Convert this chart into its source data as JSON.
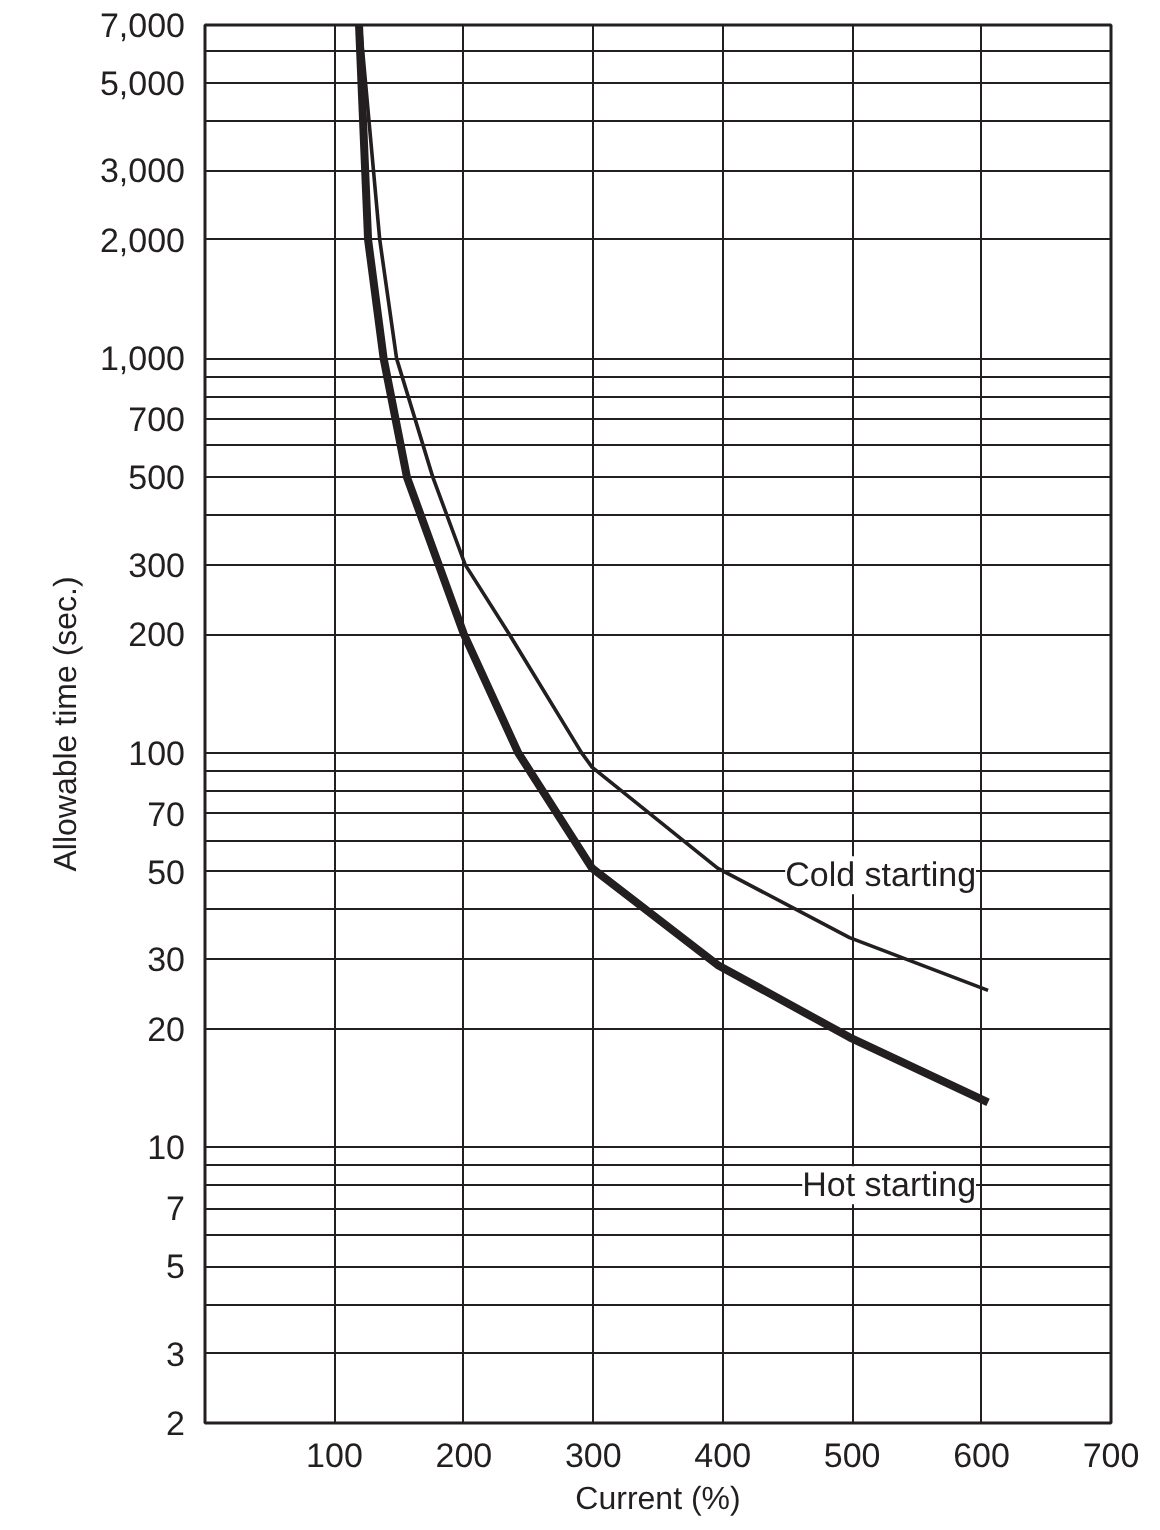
{
  "chart_data": {
    "type": "line",
    "xlabel": "Current (%)",
    "ylabel": "Allowable time (sec.)",
    "log": "y",
    "grid": true,
    "legend": false,
    "marker": "none",
    "line_style": "solid",
    "xlim": [
      0,
      700
    ],
    "xticks": [
      100,
      200,
      300,
      400,
      500,
      600,
      700
    ],
    "ylim": [
      2,
      7000
    ],
    "yticks": [
      2,
      3,
      {
        "value": 4,
        "label": null
      },
      5,
      {
        "value": 6,
        "label": null
      },
      7,
      {
        "value": 8,
        "label": null
      },
      {
        "value": 9,
        "label": null
      },
      10,
      20,
      30,
      {
        "value": 40,
        "label": null
      },
      50,
      {
        "value": 60,
        "label": null
      },
      70,
      {
        "value": 80,
        "label": null
      },
      {
        "value": 90,
        "label": null
      },
      100,
      200,
      300,
      {
        "value": 400,
        "label": null
      },
      500,
      {
        "value": 600,
        "label": null
      },
      700,
      {
        "value": 800,
        "label": null
      },
      {
        "value": 900,
        "label": null
      },
      {
        "value": 1000,
        "label": "1,000"
      },
      {
        "value": 2000,
        "label": "2,000"
      },
      {
        "value": 3000,
        "label": "3,000"
      },
      {
        "value": 4000,
        "label": null
      },
      {
        "value": 5000,
        "label": "5,000"
      },
      {
        "value": 6000,
        "label": null
      },
      {
        "value": 7000,
        "label": "7,000"
      }
    ],
    "series": [
      {
        "name": "Cold starting",
        "color": "#231f20",
        "x": [
          120,
          135,
          148,
          176,
          201,
          235,
          291,
          299,
          396,
          498,
          605
        ],
        "values": [
          7000,
          2000,
          1000,
          500,
          300,
          200,
          100,
          92,
          51,
          34,
          25
        ]
      },
      {
        "name": "Hot starting",
        "color": "#231f20",
        "x": [
          119,
          126,
          138,
          156,
          200,
          242,
          299,
          396,
          498,
          605
        ],
        "values": [
          7000,
          2000,
          1000,
          500,
          200,
          100,
          51,
          29,
          19,
          13
        ]
      }
    ]
  }
}
